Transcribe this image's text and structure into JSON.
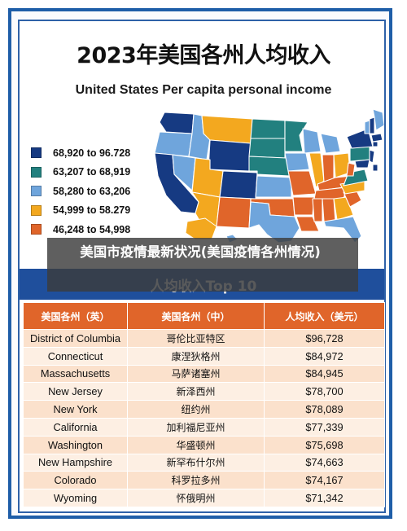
{
  "title": "2023年美国各州人均收入",
  "subtitle": "United States Per capita personal income",
  "legend": [
    {
      "label": "68,920 to 96.728",
      "color": "#163a82"
    },
    {
      "label": "63,207 to 68,919",
      "color": "#22807f"
    },
    {
      "label": "58,280 to 63,206",
      "color": "#6fa5dc"
    },
    {
      "label": "54,999 to 58.279",
      "color": "#f3a81f"
    },
    {
      "label": "46,248 to 54,998",
      "color": "#e0652a"
    }
  ],
  "overlay_banner": "美国市疫情最新状况(美国疫情各州情况)",
  "table_title": "人均收入Top 10",
  "table": {
    "headers": [
      "美国各州（英）",
      "美国各州（中）",
      "人均收入（美元）"
    ],
    "rows": [
      [
        "District of Columbia",
        "哥伦比亚特区",
        "$96,728"
      ],
      [
        "Connecticut",
        "康涅狄格州",
        "$84,972"
      ],
      [
        "Massachusetts",
        "马萨诸塞州",
        "$84,945"
      ],
      [
        "New Jersey",
        "新泽西州",
        "$78,700"
      ],
      [
        "New York",
        "纽约州",
        "$78,089"
      ],
      [
        "California",
        "加利福尼亚州",
        "$77,339"
      ],
      [
        "Washington",
        "华盛顿州",
        "$75,698"
      ],
      [
        "New Hampshire",
        "新罕布什尔州",
        "$74,663"
      ],
      [
        "Colorado",
        "科罗拉多州",
        "$74,167"
      ],
      [
        "Wyoming",
        "怀俄明州",
        "$71,342"
      ]
    ]
  }
}
